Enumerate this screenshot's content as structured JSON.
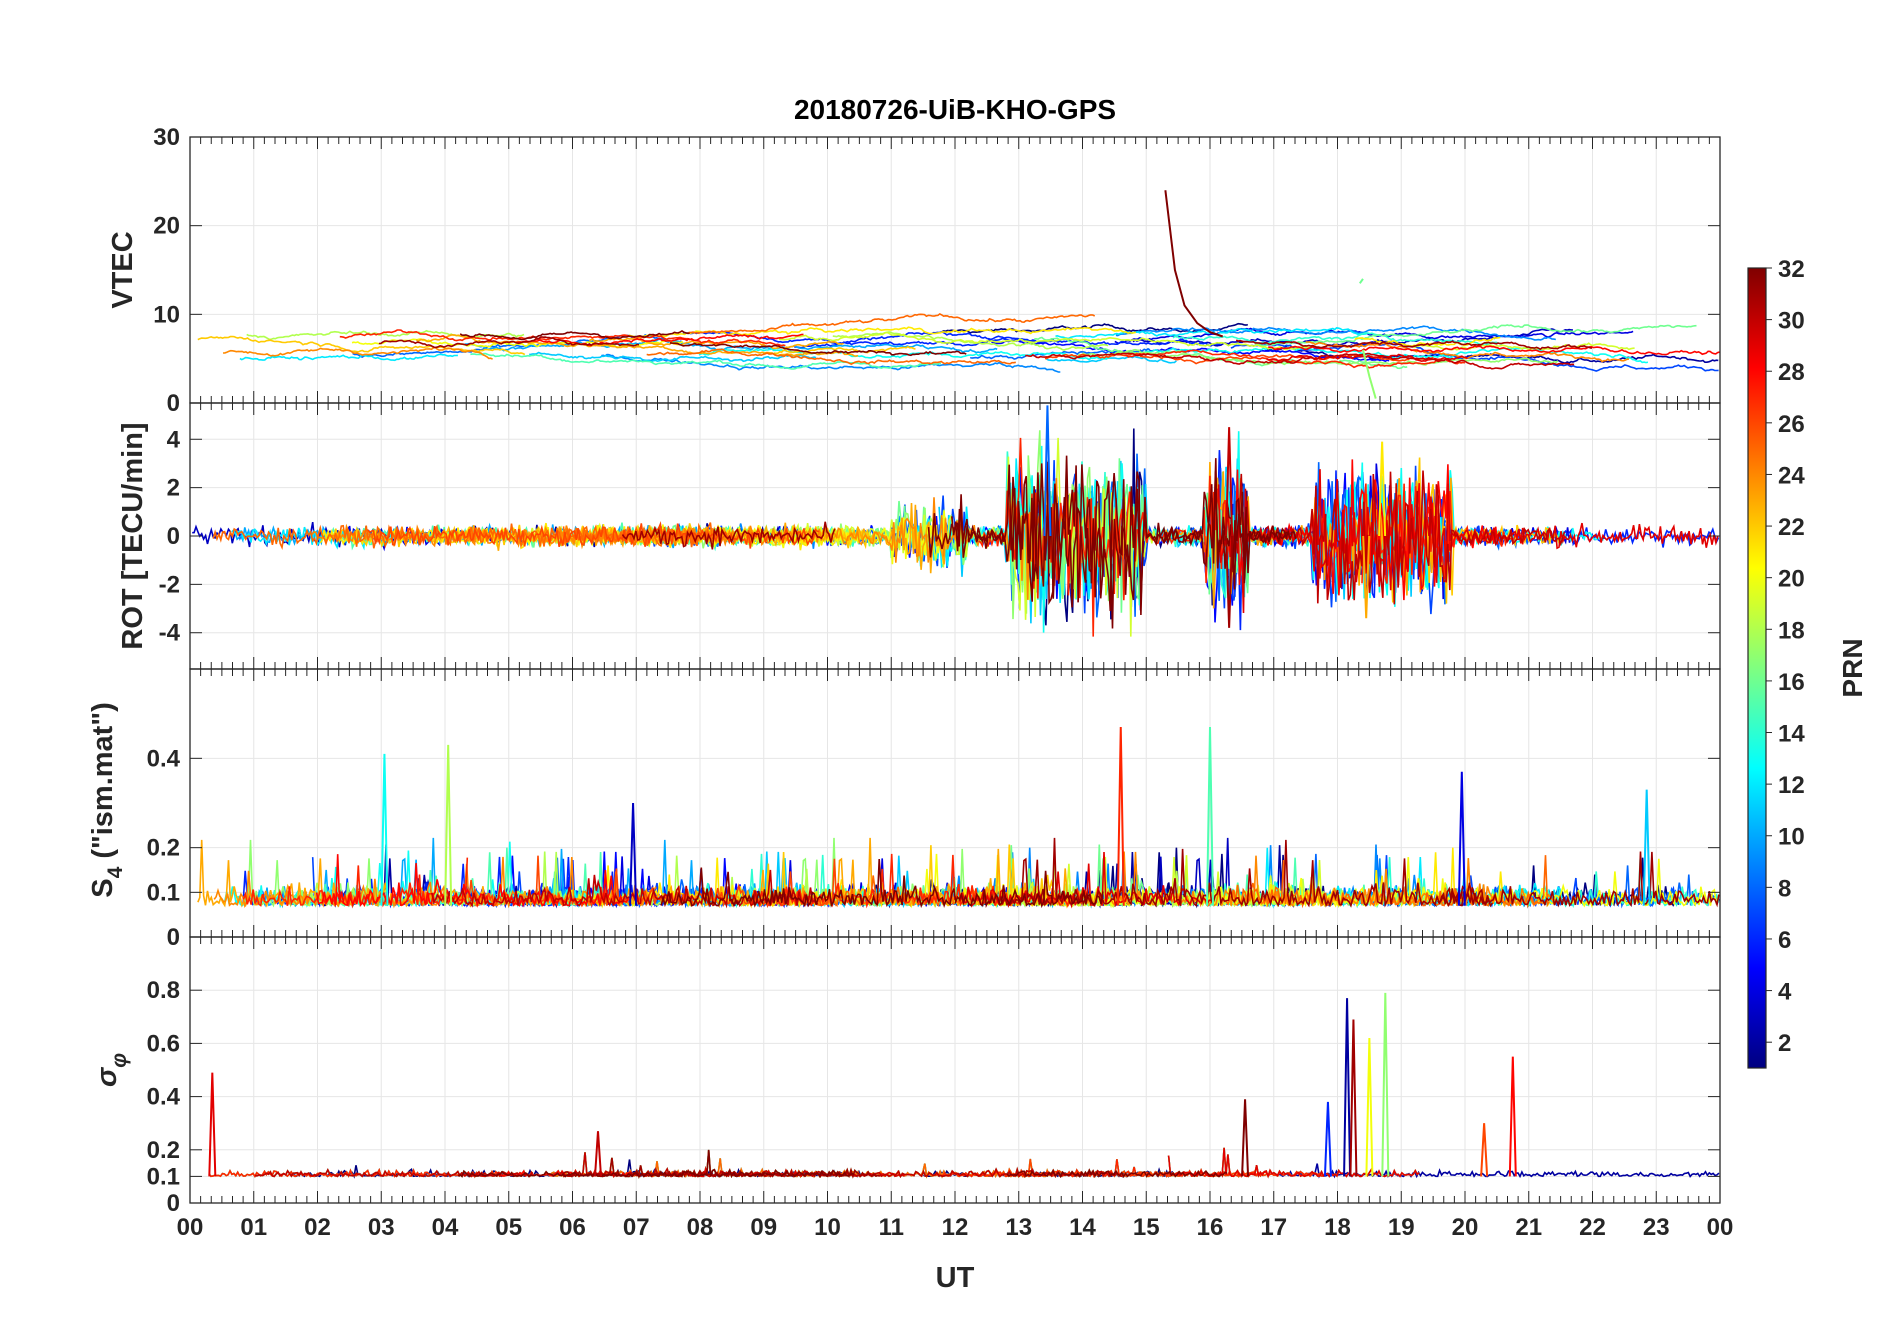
{
  "figure_title": "20180726-UiB-KHO-GPS",
  "colors": {
    "axis": "#262626",
    "grid": "#e6e6e6",
    "colormap": "jet",
    "colormap_stops": [
      "#000080",
      "#0000ff",
      "#00ffff",
      "#ffff00",
      "#ff0000",
      "#800000"
    ]
  },
  "colorbar": {
    "label": "PRN",
    "ticks": [
      "2",
      "4",
      "6",
      "8",
      "10",
      "12",
      "14",
      "16",
      "18",
      "20",
      "22",
      "24",
      "26",
      "28",
      "30",
      "32"
    ],
    "range": [
      1,
      32
    ]
  },
  "chart_data": [
    {
      "type": "line",
      "panel": "vtec",
      "title": "20180726-UiB-KHO-GPS",
      "xlabel": "",
      "ylabel": "VTEC",
      "xlim": [
        0,
        24
      ],
      "ylim": [
        0,
        30
      ],
      "yticks": [
        0,
        10,
        20,
        30
      ],
      "ytick_labels": [
        "0",
        "10",
        "20",
        "30"
      ],
      "grid": true,
      "color_by": "PRN",
      "baseline": 6.5,
      "noise": 0.4,
      "features": [
        {
          "prn": 32,
          "x": [
            15.3,
            15.45,
            15.6,
            15.8,
            16.0,
            16.2
          ],
          "y": [
            24,
            15,
            11,
            9,
            8,
            7.5
          ]
        },
        {
          "prn": 16,
          "x": [
            18.35,
            18.4
          ],
          "y": [
            13.5,
            14
          ]
        },
        {
          "prn": 17,
          "x": [
            18.4,
            18.5,
            18.6
          ],
          "y": [
            6,
            3,
            0.5
          ]
        }
      ]
    },
    {
      "type": "line",
      "panel": "rot",
      "xlabel": "",
      "ylabel": "ROT [TECU/min]",
      "xlim": [
        0,
        24
      ],
      "ylim": [
        -5.5,
        5.5
      ],
      "yticks": [
        -4,
        -2,
        0,
        2,
        4
      ],
      "ytick_labels": [
        "-4",
        "-2",
        "0",
        "2",
        "4"
      ],
      "grid": true,
      "color_by": "PRN",
      "baseline": 0,
      "activity": [
        {
          "start": 11.0,
          "end": 12.2,
          "amplitude": 1.8
        },
        {
          "start": 12.8,
          "end": 15.0,
          "amplitude": 4.5
        },
        {
          "start": 15.9,
          "end": 16.6,
          "amplitude": 4.3
        },
        {
          "start": 17.6,
          "end": 19.8,
          "amplitude": 3.8
        }
      ],
      "peaks": [
        {
          "prn": 8,
          "x": 13.45,
          "y": 5.4
        },
        {
          "prn": 30,
          "x": 16.3,
          "y": 4.5
        },
        {
          "prn": 31,
          "x": 16.3,
          "y": -3.8
        },
        {
          "prn": 21,
          "x": 18.7,
          "y": 3.9
        },
        {
          "prn": 23,
          "x": 18.45,
          "y": -3.4
        }
      ]
    },
    {
      "type": "line",
      "panel": "s4",
      "xlabel": "",
      "ylabel": "S4 (\"ism.mat\")",
      "xlim": [
        0,
        24
      ],
      "ylim": [
        0,
        0.6
      ],
      "yticks": [
        0,
        0.1,
        0.2,
        0.4
      ],
      "ytick_labels": [
        "0",
        "0.1",
        "0.2",
        "0.4"
      ],
      "grid": true,
      "color_by": "PRN",
      "baseline": 0.07,
      "peaks": [
        {
          "prn": 13,
          "x": 3.05,
          "y": 0.41
        },
        {
          "prn": 18,
          "x": 4.05,
          "y": 0.43
        },
        {
          "prn": 27,
          "x": 14.6,
          "y": 0.47
        },
        {
          "prn": 15,
          "x": 16.0,
          "y": 0.47
        },
        {
          "prn": 4,
          "x": 19.95,
          "y": 0.37
        },
        {
          "prn": 11,
          "x": 22.85,
          "y": 0.33
        },
        {
          "prn": 3,
          "x": 6.95,
          "y": 0.3
        }
      ]
    },
    {
      "type": "line",
      "panel": "sigma_phi",
      "xlabel": "UT",
      "ylabel": "σφ",
      "xlim": [
        0,
        24
      ],
      "ylim": [
        0,
        1
      ],
      "yticks": [
        0,
        0.1,
        0.2,
        0.4,
        0.6,
        0.8
      ],
      "ytick_labels": [
        "0",
        "0.1",
        "0.2",
        "0.4",
        "0.6",
        "0.8"
      ],
      "xticks": [
        0,
        1,
        2,
        3,
        4,
        5,
        6,
        7,
        8,
        9,
        10,
        11,
        12,
        13,
        14,
        15,
        16,
        17,
        18,
        19,
        20,
        21,
        22,
        23,
        24
      ],
      "xtick_labels": [
        "00",
        "01",
        "02",
        "03",
        "04",
        "05",
        "06",
        "07",
        "08",
        "09",
        "10",
        "11",
        "12",
        "13",
        "14",
        "15",
        "16",
        "17",
        "18",
        "19",
        "20",
        "21",
        "22",
        "23",
        "00"
      ],
      "grid": true,
      "color_by": "PRN",
      "baseline": 0.1,
      "peaks": [
        {
          "prn": 29,
          "x": 0.35,
          "y": 0.49
        },
        {
          "prn": 2,
          "x": 18.15,
          "y": 0.77
        },
        {
          "prn": 31,
          "x": 18.25,
          "y": 0.69
        },
        {
          "prn": 17,
          "x": 18.75,
          "y": 0.79
        },
        {
          "prn": 20,
          "x": 18.5,
          "y": 0.62
        },
        {
          "prn": 28,
          "x": 20.75,
          "y": 0.55
        },
        {
          "prn": 32,
          "x": 16.55,
          "y": 0.39
        },
        {
          "prn": 6,
          "x": 17.85,
          "y": 0.38
        },
        {
          "prn": 26,
          "x": 20.3,
          "y": 0.3
        },
        {
          "prn": 30,
          "x": 6.4,
          "y": 0.27
        }
      ]
    }
  ]
}
